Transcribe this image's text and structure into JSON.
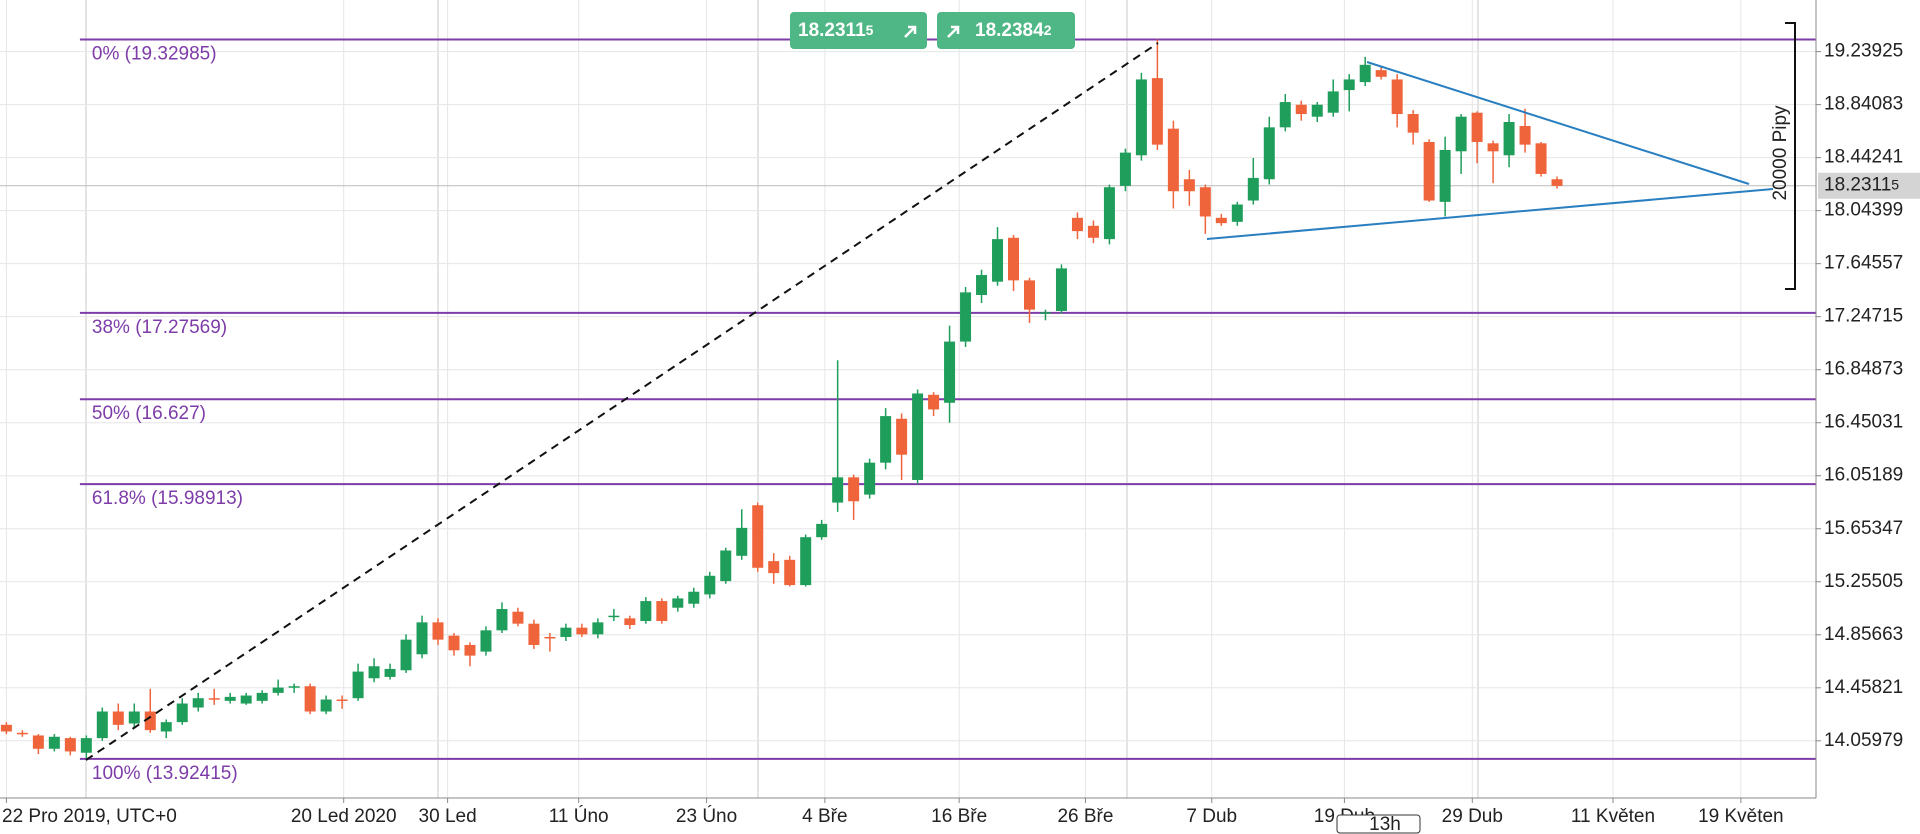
{
  "chart_data": {
    "type": "candlestick",
    "up_color": "#1e9e5a",
    "down_color": "#f0643c",
    "fib_color": "#7d3ca8",
    "grid": true,
    "xlim": [
      -0.4,
      113.2
    ],
    "ylim": [
      13.63,
      19.627
    ],
    "xticks": [
      {
        "value": 0,
        "label": "22 Pro 2019, UTC+0"
      },
      {
        "value": 21.1,
        "label": "20 Led 2020"
      },
      {
        "value": 27.6,
        "label": "30 Led"
      },
      {
        "value": 35.8,
        "label": "11 Úno"
      },
      {
        "value": 43.8,
        "label": "23 Úno"
      },
      {
        "value": 51.2,
        "label": "4 Bře"
      },
      {
        "value": 59.6,
        "label": "16 Bře"
      },
      {
        "value": 67.5,
        "label": "26 Bře"
      },
      {
        "value": 75.4,
        "label": "7 Dub"
      },
      {
        "value": 83.7,
        "label": "19 Dub"
      },
      {
        "value": 91.7,
        "label": "29 Dub"
      },
      {
        "value": 100.5,
        "label": "11 Květen"
      },
      {
        "value": 108.5,
        "label": "19 Květen"
      }
    ],
    "yticks": [
      19.23925,
      18.84083,
      18.44241,
      18.04399,
      17.64557,
      17.24715,
      16.84873,
      16.45031,
      16.05189,
      15.65347,
      15.25505,
      14.85663,
      14.45821,
      14.05979
    ],
    "open": [
      14.18,
      14.12,
      14.1,
      14.0,
      14.08,
      13.97,
      14.08,
      14.28,
      14.19,
      14.28,
      14.13,
      14.2,
      14.31,
      14.38,
      14.36,
      14.34,
      14.36,
      14.42,
      14.46,
      14.47,
      14.28,
      14.37,
      14.38,
      14.53,
      14.54,
      14.59,
      14.71,
      14.95,
      14.85,
      14.78,
      14.73,
      14.89,
      15.03,
      14.94,
      14.84,
      14.84,
      14.91,
      14.86,
      14.99,
      14.98,
      14.96,
      15.11,
      15.06,
      15.09,
      15.16,
      15.26,
      15.45,
      15.83,
      15.41,
      15.42,
      15.23,
      15.59,
      15.85,
      16.04,
      15.91,
      16.15,
      16.48,
      16.02,
      16.66,
      16.6,
      17.06,
      17.41,
      17.51,
      17.84,
      17.52,
      17.28,
      17.29,
      17.99,
      17.93,
      17.83,
      18.23,
      18.46,
      19.04,
      18.66,
      18.28,
      18.22,
      17.99,
      17.96,
      18.12,
      18.28,
      18.67,
      18.84,
      18.75,
      18.78,
      18.95,
      19.01,
      19.1,
      19.03,
      18.77,
      18.56,
      18.11,
      18.49,
      18.78,
      18.55,
      18.46,
      18.68,
      18.55,
      18.28
    ],
    "high": [
      14.2,
      14.14,
      14.11,
      14.11,
      14.09,
      14.1,
      14.31,
      14.34,
      14.34,
      14.45,
      14.22,
      14.38,
      14.42,
      14.45,
      14.42,
      14.42,
      14.44,
      14.52,
      14.49,
      14.49,
      14.4,
      14.4,
      14.64,
      14.68,
      14.64,
      14.86,
      15.0,
      14.98,
      14.87,
      14.8,
      14.92,
      15.1,
      15.06,
      14.97,
      14.87,
      14.94,
      14.94,
      14.98,
      15.05,
      15.0,
      15.14,
      15.13,
      15.15,
      15.21,
      15.33,
      15.51,
      15.8,
      15.85,
      15.47,
      15.45,
      15.61,
      15.72,
      16.92,
      16.06,
      16.18,
      16.56,
      16.52,
      16.7,
      16.68,
      17.18,
      17.47,
      17.6,
      17.92,
      17.86,
      17.54,
      17.3,
      17.64,
      18.03,
      17.97,
      18.24,
      18.51,
      19.08,
      19.33,
      18.72,
      18.35,
      18.24,
      18.02,
      18.11,
      18.44,
      18.75,
      18.92,
      18.87,
      18.86,
      19.03,
      19.07,
      19.2,
      19.12,
      19.07,
      18.8,
      18.58,
      18.6,
      18.77,
      18.79,
      18.57,
      18.77,
      18.81,
      18.56,
      18.3
    ],
    "low": [
      14.11,
      14.09,
      13.96,
      13.98,
      13.95,
      13.93,
      14.06,
      14.14,
      14.16,
      14.12,
      14.08,
      14.18,
      14.28,
      14.33,
      14.34,
      14.33,
      14.34,
      14.4,
      14.42,
      14.26,
      14.26,
      14.3,
      14.36,
      14.5,
      14.52,
      14.57,
      14.68,
      14.78,
      14.7,
      14.62,
      14.7,
      14.87,
      14.92,
      14.75,
      14.73,
      14.81,
      14.84,
      14.83,
      14.96,
      14.9,
      14.94,
      14.94,
      15.03,
      15.06,
      15.13,
      15.24,
      15.42,
      15.33,
      15.24,
      15.22,
      15.22,
      15.57,
      15.78,
      15.72,
      15.88,
      16.1,
      16.02,
      15.99,
      16.5,
      16.45,
      17.02,
      17.35,
      17.48,
      17.44,
      17.2,
      17.22,
      17.27,
      17.83,
      17.8,
      17.79,
      18.19,
      18.42,
      18.5,
      18.06,
      18.08,
      17.87,
      17.93,
      17.93,
      18.09,
      18.24,
      18.64,
      18.72,
      18.71,
      18.75,
      18.79,
      18.98,
      19.03,
      18.67,
      18.54,
      18.11,
      18.0,
      18.32,
      18.4,
      18.25,
      18.37,
      18.48,
      18.3,
      18.21
    ],
    "close": [
      14.13,
      14.11,
      14.0,
      14.09,
      13.98,
      14.08,
      14.28,
      14.18,
      14.28,
      14.14,
      14.2,
      14.34,
      14.38,
      14.37,
      14.39,
      14.4,
      14.42,
      14.46,
      14.47,
      14.28,
      14.37,
      14.36,
      14.58,
      14.62,
      14.6,
      14.82,
      14.95,
      14.82,
      14.74,
      14.7,
      14.89,
      15.05,
      14.94,
      14.78,
      14.83,
      14.91,
      14.86,
      14.95,
      15.0,
      14.93,
      15.11,
      14.96,
      15.13,
      15.18,
      15.3,
      15.49,
      15.66,
      15.36,
      15.32,
      15.23,
      15.59,
      15.69,
      16.04,
      15.86,
      16.15,
      16.5,
      16.21,
      16.67,
      16.55,
      17.06,
      17.43,
      17.56,
      17.83,
      17.52,
      17.3,
      17.28,
      17.61,
      17.89,
      17.84,
      18.22,
      18.48,
      19.03,
      18.54,
      18.19,
      18.19,
      18.0,
      17.95,
      18.09,
      18.29,
      18.67,
      18.86,
      18.77,
      18.84,
      18.94,
      19.03,
      19.14,
      19.05,
      18.77,
      18.63,
      18.12,
      18.5,
      18.75,
      18.56,
      18.49,
      18.71,
      18.54,
      18.32,
      18.23
    ],
    "fib_levels": [
      {
        "value": 19.32985,
        "label": "0% (19.32985)"
      },
      {
        "value": 17.27569,
        "label": "38% (17.27569)"
      },
      {
        "value": 16.627,
        "label": "50% (16.627)"
      },
      {
        "value": 15.98913,
        "label": "61.8% (15.98913)"
      },
      {
        "value": 13.92415,
        "label": "100% (13.92415)"
      }
    ],
    "current_price": {
      "value": 18.23115,
      "label": "18.23115"
    },
    "sell_price": "18.23115",
    "buy_price": "18.23842",
    "measure_label": "20000 Pipy",
    "countdown": "13h"
  }
}
